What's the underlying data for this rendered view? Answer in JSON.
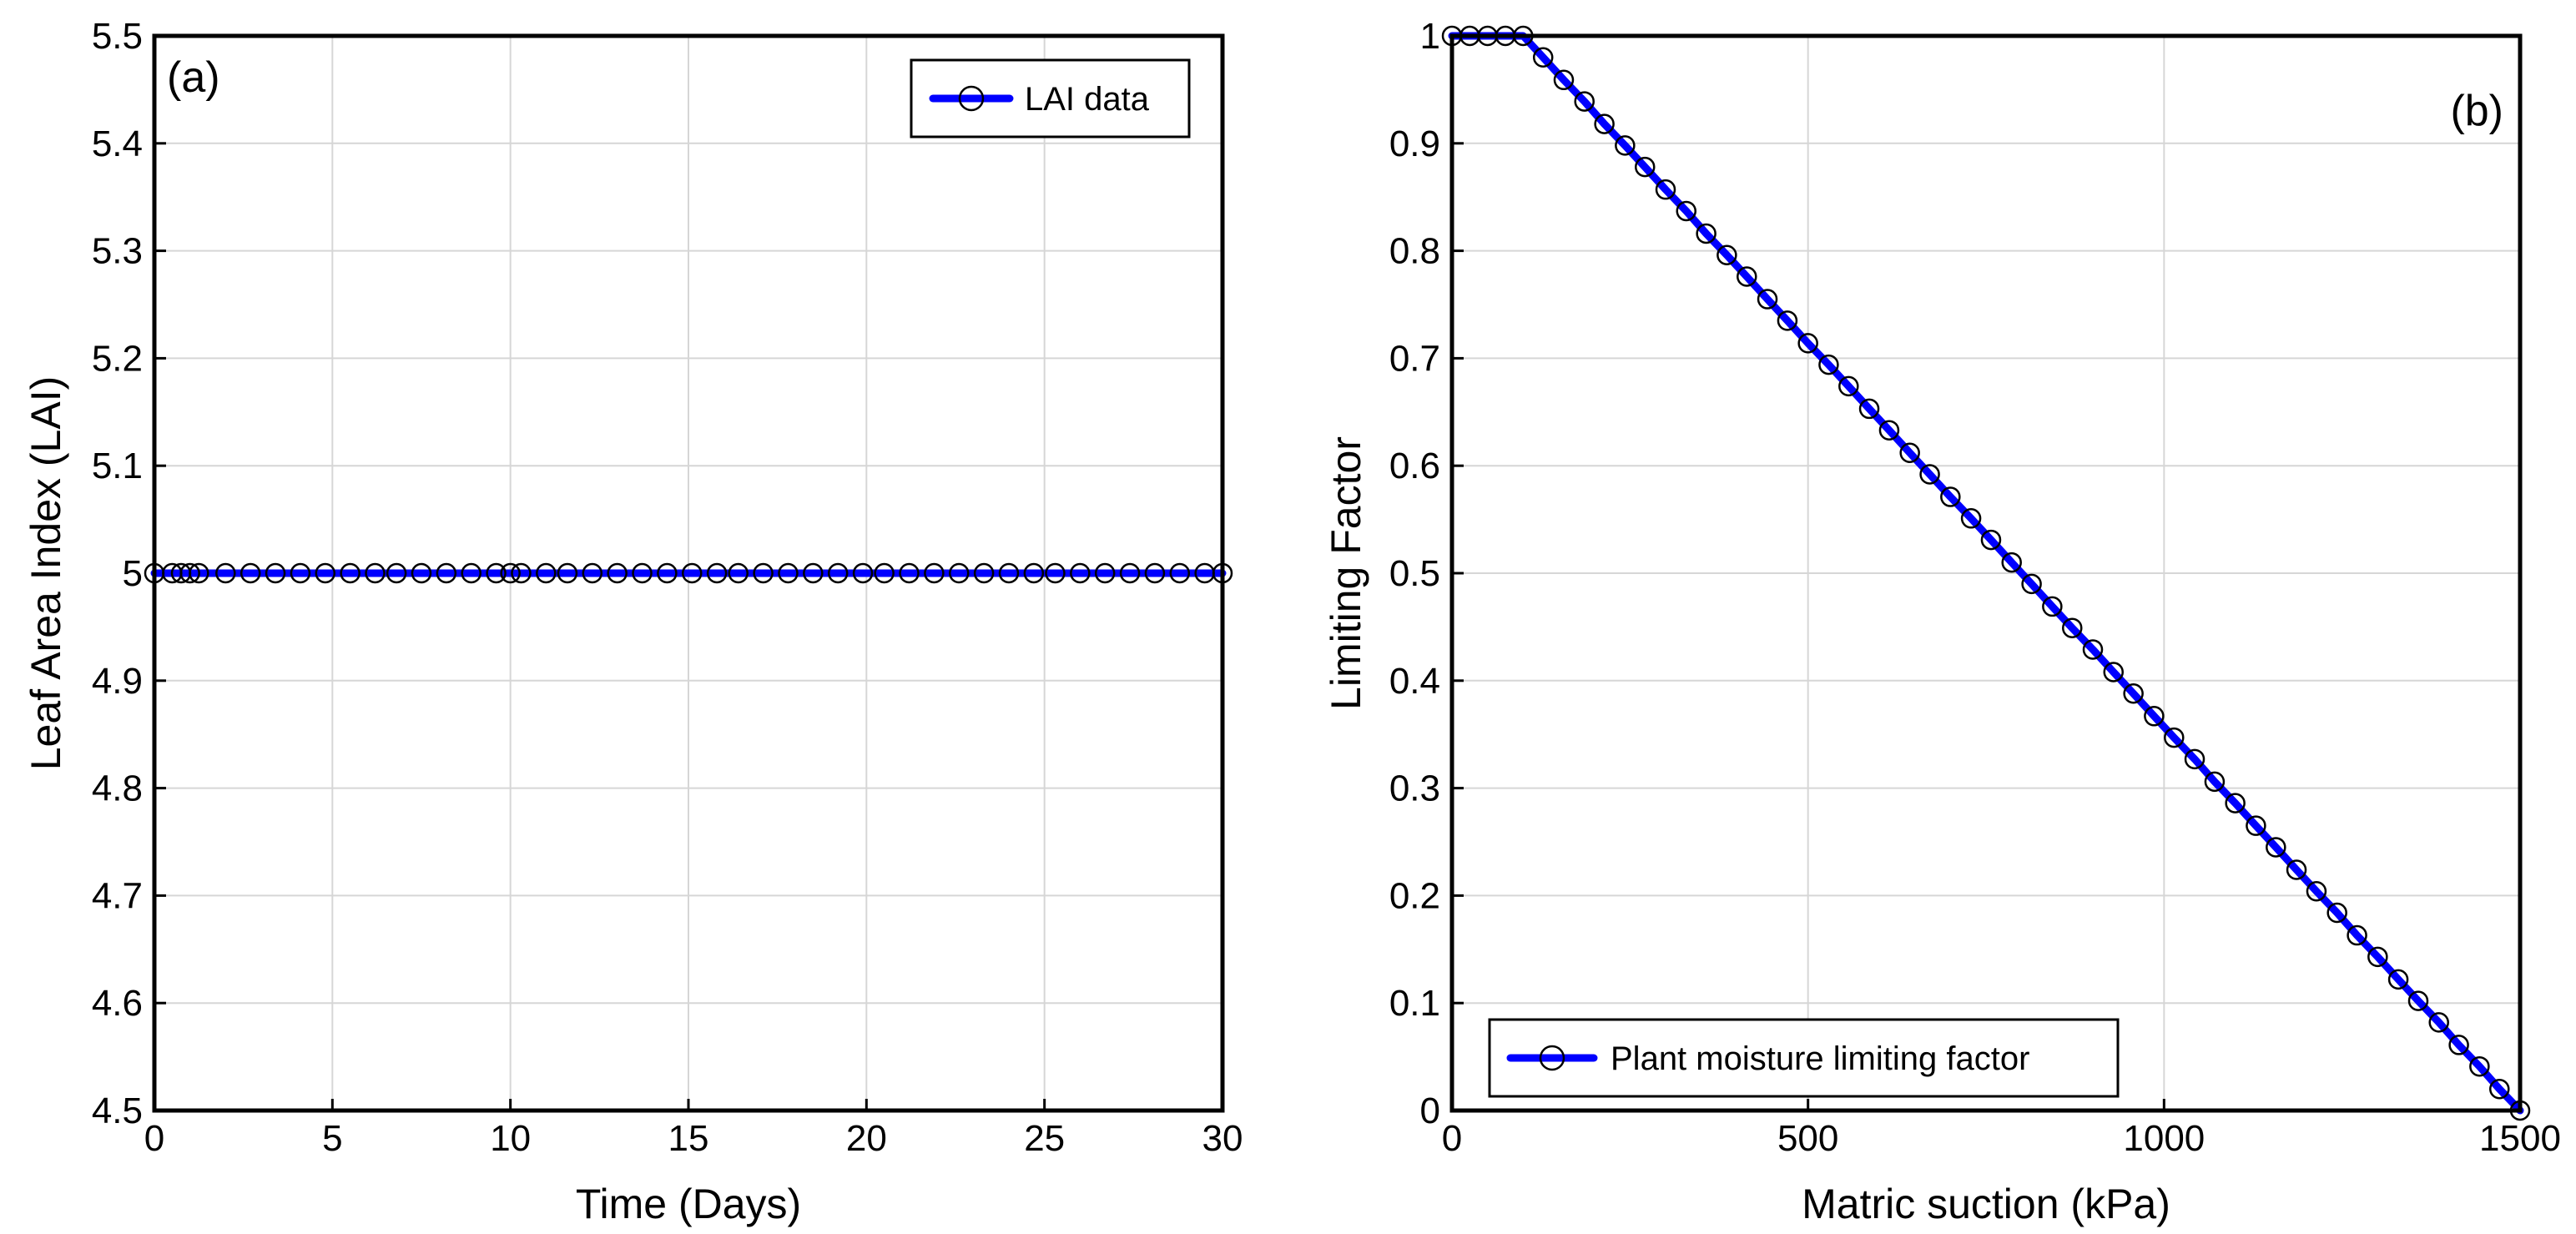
{
  "colors": {
    "series": "#0000ff",
    "marker": "#000000",
    "grid": "#d6d6d6",
    "frame": "#000000"
  },
  "chart_data": [
    {
      "id": "a",
      "type": "line",
      "panel_label": "(a)",
      "xlabel": "Time (Days)",
      "ylabel": "Leaf Area Index (LAI)",
      "xlim": [
        0,
        30
      ],
      "ylim": [
        4.5,
        5.5
      ],
      "xticks": [
        0,
        5,
        10,
        15,
        20,
        25,
        30
      ],
      "xtick_labels": [
        "0",
        "5",
        "10",
        "15",
        "20",
        "25",
        "30"
      ],
      "yticks": [
        4.5,
        4.6,
        4.7,
        4.8,
        4.9,
        5.0,
        5.1,
        5.2,
        5.3,
        5.4,
        5.5
      ],
      "ytick_labels": [
        "4.5",
        "4.6",
        "4.7",
        "4.8",
        "4.9",
        "5",
        "5.1",
        "5.2",
        "5.3",
        "5.4",
        "5.5"
      ],
      "grid": true,
      "legend_position": "top-right",
      "series": [
        {
          "name": "LAI data",
          "x": [
            0,
            0.5,
            0.75,
            1.0,
            1.25,
            2,
            2.7,
            3.4,
            4.1,
            4.8,
            5.5,
            6.2,
            6.8,
            7.5,
            8.2,
            8.9,
            9.6,
            10.0,
            10.3,
            11.0,
            11.6,
            12.3,
            13.0,
            13.7,
            14.4,
            15.1,
            15.8,
            16.4,
            17.1,
            17.8,
            18.5,
            19.2,
            19.9,
            20.5,
            21.2,
            21.9,
            22.6,
            23.3,
            24.0,
            24.7,
            25.3,
            26.0,
            26.7,
            27.4,
            28.1,
            28.8,
            29.5,
            30
          ],
          "y": [
            5,
            5,
            5,
            5,
            5,
            5,
            5,
            5,
            5,
            5,
            5,
            5,
            5,
            5,
            5,
            5,
            5,
            5,
            5,
            5,
            5,
            5,
            5,
            5,
            5,
            5,
            5,
            5,
            5,
            5,
            5,
            5,
            5,
            5,
            5,
            5,
            5,
            5,
            5,
            5,
            5,
            5,
            5,
            5,
            5,
            5,
            5,
            5
          ]
        }
      ]
    },
    {
      "id": "b",
      "type": "line",
      "panel_label": "(b)",
      "xlabel": "Matric suction (kPa)",
      "ylabel": "Limiting Factor",
      "xlim": [
        0,
        1500
      ],
      "ylim": [
        0,
        1
      ],
      "xticks": [
        0,
        500,
        1000,
        1500
      ],
      "xtick_labels": [
        "0",
        "500",
        "1000",
        "1500"
      ],
      "yticks": [
        0,
        0.1,
        0.2,
        0.3,
        0.4,
        0.5,
        0.6,
        0.7,
        0.8,
        0.9,
        1
      ],
      "ytick_labels": [
        "0",
        "0.1",
        "0.2",
        "0.3",
        "0.4",
        "0.5",
        "0.6",
        "0.7",
        "0.8",
        "0.9",
        "1"
      ],
      "grid": true,
      "legend_position": "bottom-left",
      "series": [
        {
          "name": "Plant moisture limiting factor",
          "x": [
            0,
            25,
            50,
            75,
            100,
            128,
            157,
            186,
            214,
            243,
            271,
            300,
            329,
            357,
            386,
            414,
            443,
            471,
            500,
            529,
            557,
            586,
            614,
            643,
            671,
            700,
            729,
            757,
            786,
            814,
            843,
            871,
            900,
            929,
            957,
            986,
            1014,
            1043,
            1071,
            1100,
            1129,
            1157,
            1186,
            1214,
            1243,
            1271,
            1300,
            1329,
            1357,
            1386,
            1414,
            1443,
            1471,
            1500
          ],
          "y": [
            1,
            1,
            1,
            1,
            1,
            0.98,
            0.959,
            0.939,
            0.918,
            0.898,
            0.878,
            0.857,
            0.837,
            0.816,
            0.796,
            0.776,
            0.755,
            0.735,
            0.714,
            0.694,
            0.674,
            0.653,
            0.633,
            0.612,
            0.592,
            0.571,
            0.551,
            0.531,
            0.51,
            0.49,
            0.469,
            0.449,
            0.429,
            0.408,
            0.388,
            0.367,
            0.347,
            0.327,
            0.306,
            0.286,
            0.265,
            0.245,
            0.224,
            0.204,
            0.184,
            0.163,
            0.143,
            0.122,
            0.102,
            0.082,
            0.061,
            0.041,
            0.02,
            0
          ]
        }
      ]
    }
  ]
}
